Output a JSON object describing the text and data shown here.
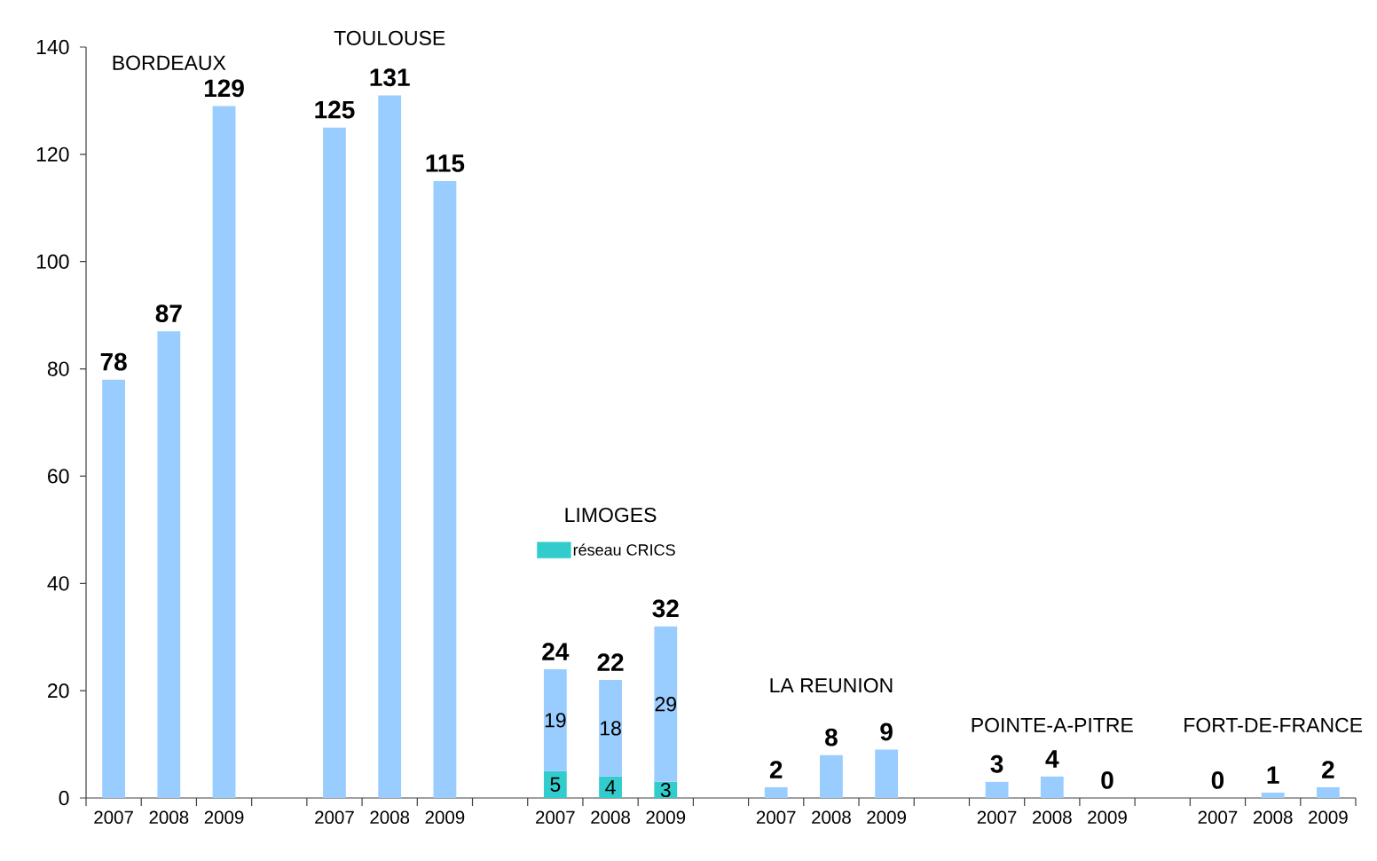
{
  "chart_data": {
    "type": "bar",
    "stacked": true,
    "categories": [
      "2007",
      "2008",
      "2009",
      null,
      "2007",
      "2008",
      "2009",
      null,
      "2007",
      "2008",
      "2009",
      null,
      "2007",
      "2008",
      "2009",
      null,
      "2007",
      "2008",
      "2009",
      null,
      "2007",
      "2008",
      "2009"
    ],
    "series": [
      {
        "name": "réseau CRICS",
        "color": "#33cccc",
        "values": [
          null,
          null,
          null,
          null,
          null,
          null,
          null,
          null,
          5,
          4,
          3,
          null,
          null,
          null,
          null,
          null,
          null,
          null,
          null,
          null,
          null,
          null,
          null
        ],
        "value_labels": [
          null,
          null,
          null,
          null,
          null,
          null,
          null,
          null,
          "5",
          "4",
          "3",
          null,
          null,
          null,
          null,
          null,
          null,
          null,
          null,
          null,
          null,
          null,
          null
        ]
      },
      {
        "color": "#99ccff",
        "values": [
          78,
          87,
          129,
          null,
          125,
          131,
          115,
          null,
          19,
          18,
          29,
          null,
          2,
          8,
          9,
          null,
          3,
          4,
          0,
          null,
          0,
          1,
          2
        ],
        "value_labels": [
          null,
          null,
          null,
          null,
          null,
          null,
          null,
          null,
          "19",
          "18",
          "29",
          null,
          null,
          null,
          null,
          null,
          null,
          null,
          null,
          null,
          null,
          null,
          null
        ]
      }
    ],
    "totals": [
      "78",
      "87",
      "129",
      null,
      "125",
      "131",
      "115",
      null,
      "24",
      "22",
      "32",
      null,
      "2",
      "8",
      "9",
      null,
      "3",
      "4",
      "0",
      null,
      "0",
      "1",
      "2"
    ],
    "ylim": [
      0,
      140
    ],
    "yticks": [
      0,
      20,
      40,
      60,
      80,
      100,
      120,
      140
    ],
    "legend": "center",
    "annotations": [
      "BORDEAUX",
      "TOULOUSE",
      "LIMOGES",
      "LA REUNION",
      "POINTE-A-PITRE",
      "FORT-DE-FRANCE"
    ]
  }
}
